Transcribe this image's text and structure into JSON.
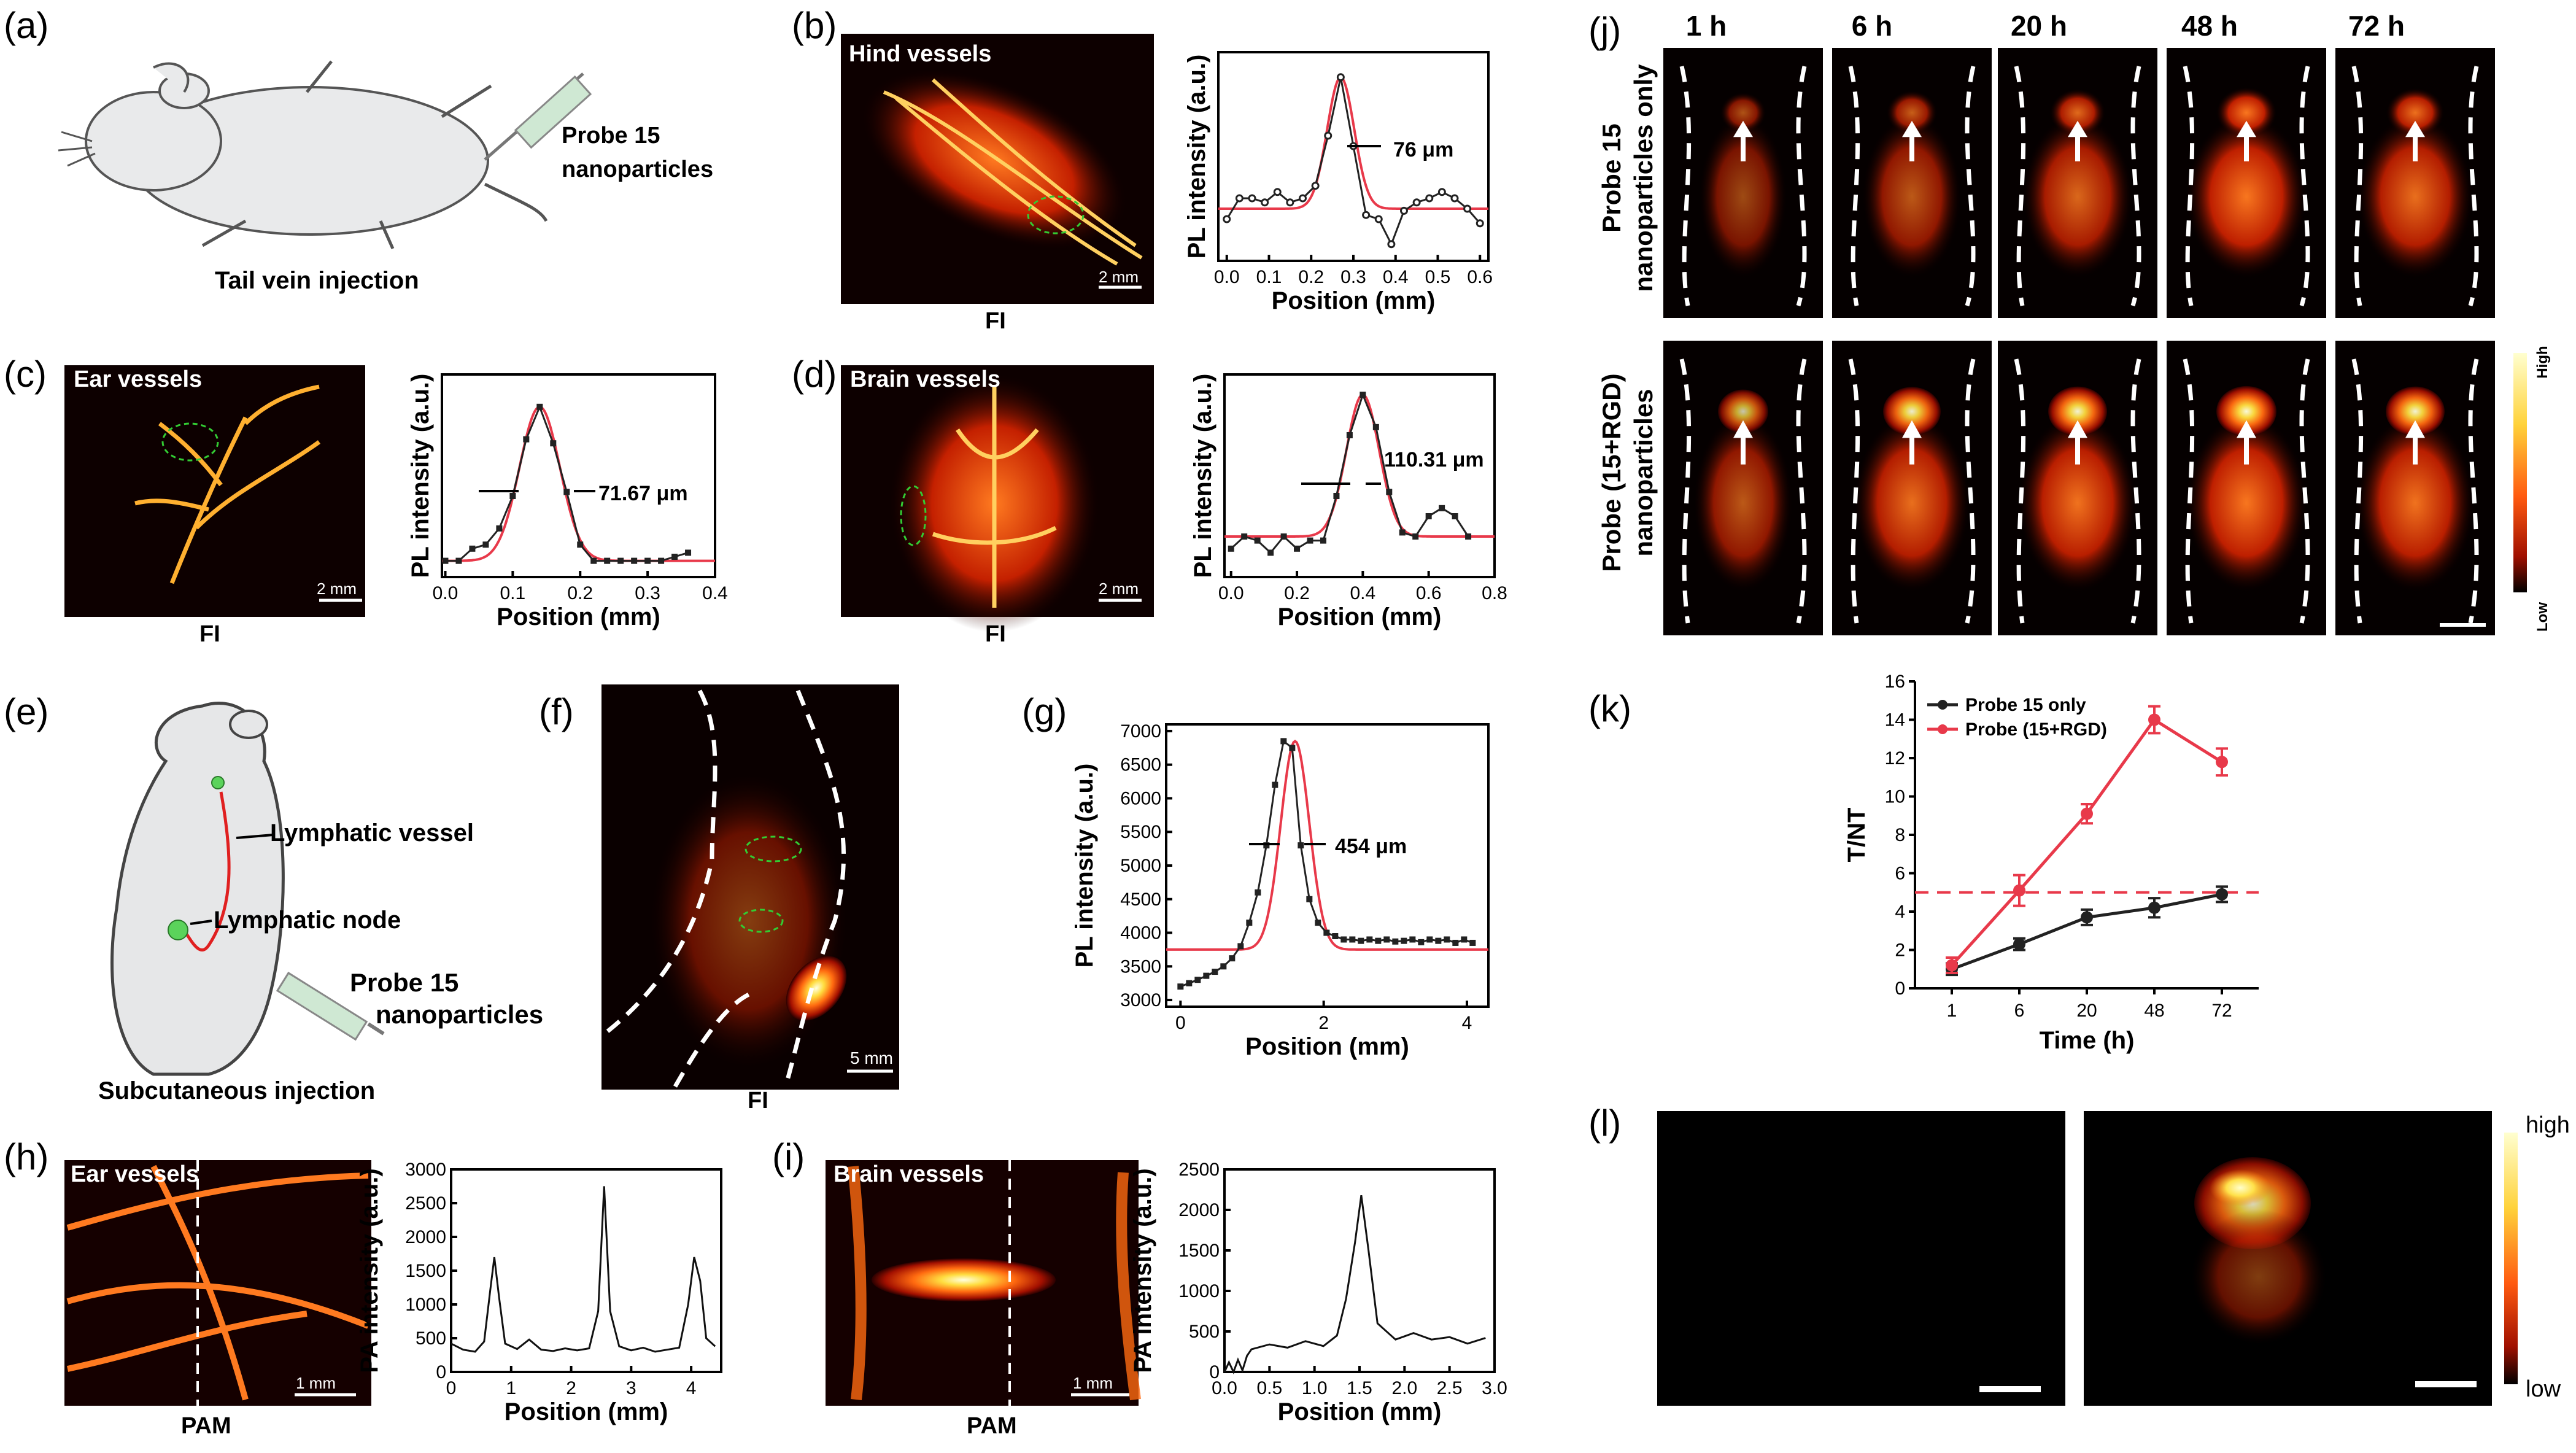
{
  "panels": {
    "a": {
      "label": "(a)",
      "probe_line1": "Probe 15",
      "probe_line2": "nanoparticles",
      "caption": "Tail vein injection"
    },
    "b": {
      "label": "(b)",
      "image_title": "Hind vessels",
      "scale": "2 mm",
      "modality": "FI"
    },
    "c": {
      "label": "(c)",
      "image_title": "Ear vessels",
      "scale": "2 mm",
      "modality": "FI"
    },
    "d": {
      "label": "(d)",
      "image_title": "Brain vessels",
      "scale": "2 mm",
      "modality": "FI"
    },
    "e": {
      "label": "(e)",
      "lymph_vessel": "Lymphatic vessel",
      "lymph_node": "Lymphatic node",
      "probe_line1": "Probe 15",
      "probe_line2": "nanoparticles",
      "caption": "Subcutaneous injection"
    },
    "f": {
      "label": "(f)",
      "scale": "5 mm",
      "modality": "FI"
    },
    "g": {
      "label": "(g)"
    },
    "h": {
      "label": "(h)",
      "image_title": "Ear vessels",
      "scale": "1 mm",
      "modality": "PAM"
    },
    "i": {
      "label": "(i)",
      "image_title": "Brain vessels",
      "scale": "1 mm",
      "modality": "PAM"
    },
    "j": {
      "label": "(j)",
      "times": [
        "1 h",
        "6 h",
        "20 h",
        "48 h",
        "72 h"
      ],
      "row1_line1": "Probe 15",
      "row1_line2": "nanoparticles  only",
      "row2_line1": "Probe (15+RGD)",
      "row2_line2": "nanoparticles",
      "cbar_high": "High",
      "cbar_low": "Low"
    },
    "k": {
      "label": "(k)"
    },
    "l": {
      "label": "(l)",
      "cbar_high": "high",
      "cbar_low": "low"
    }
  },
  "chart_data": [
    {
      "id": "b",
      "type": "line",
      "xlabel": "Position (mm)",
      "ylabel": "PL intensity (a.u.)",
      "annotation": "76 μm",
      "xlim": [
        -0.02,
        0.62
      ],
      "ylim": [
        0,
        1
      ],
      "xticks": [
        "0.0",
        "0.1",
        "0.2",
        "0.3",
        "0.4",
        "0.5",
        "0.6"
      ],
      "xtick_values": [
        0,
        0.1,
        0.2,
        0.3,
        0.4,
        0.5,
        0.6
      ],
      "x": [
        0,
        0.03,
        0.06,
        0.09,
        0.12,
        0.15,
        0.18,
        0.21,
        0.24,
        0.27,
        0.3,
        0.33,
        0.36,
        0.39,
        0.42,
        0.45,
        0.48,
        0.51,
        0.54,
        0.57,
        0.6
      ],
      "y": [
        0.2,
        0.3,
        0.3,
        0.28,
        0.33,
        0.28,
        0.3,
        0.36,
        0.6,
        0.88,
        0.55,
        0.22,
        0.2,
        0.08,
        0.24,
        0.28,
        0.3,
        0.33,
        0.3,
        0.25,
        0.18
      ],
      "fit_center": 0.27,
      "fit_width": 0.032,
      "fit_base": 0.25,
      "fit_peak": 0.88
    },
    {
      "id": "c",
      "type": "line",
      "xlabel": "Position (mm)",
      "ylabel": "PL intensity (a.u.)",
      "annotation": "71.67 μm",
      "xlim": [
        -0.005,
        0.4
      ],
      "ylim": [
        0,
        1
      ],
      "xticks": [
        "0.0",
        "0.1",
        "0.2",
        "0.3",
        "0.4"
      ],
      "xtick_values": [
        0,
        0.1,
        0.2,
        0.3,
        0.4
      ],
      "x": [
        0,
        0.02,
        0.04,
        0.06,
        0.08,
        0.1,
        0.12,
        0.14,
        0.16,
        0.18,
        0.2,
        0.22,
        0.24,
        0.26,
        0.28,
        0.3,
        0.32,
        0.34,
        0.36
      ],
      "y": [
        0.08,
        0.08,
        0.14,
        0.16,
        0.24,
        0.4,
        0.68,
        0.84,
        0.66,
        0.42,
        0.16,
        0.08,
        0.08,
        0.08,
        0.08,
        0.08,
        0.08,
        0.1,
        0.12
      ],
      "fit_center": 0.14,
      "fit_width": 0.03,
      "fit_base": 0.08,
      "fit_peak": 0.84
    },
    {
      "id": "d",
      "type": "line",
      "xlabel": "Position (mm)",
      "ylabel": "PL intensity (a.u.)",
      "annotation": "110.31 μm",
      "xlim": [
        -0.02,
        0.8
      ],
      "ylim": [
        0,
        1
      ],
      "xticks": [
        "0.0",
        "0.2",
        "0.4",
        "0.6",
        "0.8"
      ],
      "xtick_values": [
        0,
        0.2,
        0.4,
        0.6,
        0.8
      ],
      "x": [
        0,
        0.04,
        0.08,
        0.12,
        0.16,
        0.2,
        0.24,
        0.28,
        0.32,
        0.36,
        0.4,
        0.44,
        0.48,
        0.52,
        0.56,
        0.6,
        0.64,
        0.68,
        0.72
      ],
      "y": [
        0.14,
        0.2,
        0.18,
        0.12,
        0.2,
        0.14,
        0.18,
        0.18,
        0.4,
        0.7,
        0.9,
        0.74,
        0.42,
        0.22,
        0.2,
        0.3,
        0.34,
        0.3,
        0.2
      ],
      "fit_center": 0.4,
      "fit_width": 0.05,
      "fit_base": 0.2,
      "fit_peak": 0.9
    },
    {
      "id": "g",
      "type": "line",
      "xlabel": "Position (mm)",
      "ylabel": "PL intensity (a.u.)",
      "annotation": "454 μm",
      "xlim": [
        -0.2,
        4.3
      ],
      "ylim": [
        2900,
        7100
      ],
      "xticks": [
        "0",
        "2",
        "4"
      ],
      "xtick_values": [
        0,
        2,
        4
      ],
      "yticks": [
        "3000",
        "3500",
        "4000",
        "4500",
        "5000",
        "5500",
        "6000",
        "6500",
        "7000"
      ],
      "ytick_values": [
        3000,
        3500,
        4000,
        4500,
        5000,
        5500,
        6000,
        6500,
        7000
      ],
      "x": [
        0,
        0.12,
        0.24,
        0.36,
        0.48,
        0.6,
        0.72,
        0.84,
        0.96,
        1.08,
        1.2,
        1.32,
        1.44,
        1.56,
        1.68,
        1.8,
        1.92,
        2.04,
        2.16,
        2.28,
        2.4,
        2.52,
        2.64,
        2.76,
        2.88,
        3.0,
        3.12,
        3.24,
        3.36,
        3.48,
        3.6,
        3.72,
        3.84,
        3.96,
        4.08
      ],
      "y": [
        3200,
        3250,
        3300,
        3360,
        3420,
        3500,
        3620,
        3800,
        4150,
        4600,
        5300,
        6200,
        6850,
        6750,
        5300,
        4500,
        4150,
        4000,
        3950,
        3900,
        3900,
        3880,
        3900,
        3880,
        3900,
        3870,
        3880,
        3900,
        3860,
        3900,
        3880,
        3900,
        3850,
        3900,
        3850
      ],
      "fit_center": 1.6,
      "fit_width": 0.2,
      "fit_base": 3750,
      "fit_peak": 6850
    },
    {
      "id": "h",
      "type": "line",
      "xlabel": "Position (mm)",
      "ylabel": "PA intensity (a.u.)",
      "xlim": [
        0,
        4.5
      ],
      "ylim": [
        0,
        3000
      ],
      "xticks": [
        "0",
        "1",
        "2",
        "3",
        "4"
      ],
      "xtick_values": [
        0,
        1,
        2,
        3,
        4
      ],
      "yticks": [
        "0",
        "500",
        "1000",
        "1500",
        "2000",
        "2500",
        "3000"
      ],
      "ytick_values": [
        0,
        500,
        1000,
        1500,
        2000,
        2500,
        3000
      ],
      "x": [
        0,
        0.2,
        0.4,
        0.55,
        0.65,
        0.72,
        0.8,
        0.9,
        1.1,
        1.3,
        1.5,
        1.7,
        1.9,
        2.1,
        2.3,
        2.45,
        2.55,
        2.65,
        2.8,
        3.0,
        3.2,
        3.4,
        3.6,
        3.8,
        3.95,
        4.05,
        4.15,
        4.25,
        4.4
      ],
      "y": [
        420,
        330,
        300,
        450,
        1200,
        1700,
        1100,
        420,
        340,
        480,
        330,
        310,
        350,
        320,
        350,
        900,
        2750,
        900,
        380,
        320,
        360,
        300,
        330,
        360,
        1000,
        1700,
        1350,
        500,
        380
      ]
    },
    {
      "id": "i",
      "type": "line",
      "xlabel": "Position (mm)",
      "ylabel": "PA intensity (a.u.)",
      "xlim": [
        0,
        3.0
      ],
      "ylim": [
        0,
        2500
      ],
      "xticks": [
        "0.0",
        "0.5",
        "1.0",
        "1.5",
        "2.0",
        "2.5",
        "3.0"
      ],
      "xtick_values": [
        0,
        0.5,
        1.0,
        1.5,
        2.0,
        2.5,
        3.0
      ],
      "yticks": [
        "0",
        "500",
        "1000",
        "1500",
        "2000",
        "2500"
      ],
      "ytick_values": [
        0,
        500,
        1000,
        1500,
        2000,
        2500
      ],
      "x": [
        0,
        0.05,
        0.1,
        0.15,
        0.2,
        0.25,
        0.3,
        0.5,
        0.7,
        0.9,
        1.1,
        1.25,
        1.35,
        1.45,
        1.52,
        1.6,
        1.7,
        1.9,
        2.1,
        2.3,
        2.5,
        2.7,
        2.9
      ],
      "y": [
        0,
        120,
        0,
        150,
        20,
        200,
        280,
        340,
        300,
        380,
        320,
        450,
        900,
        1600,
        2180,
        1500,
        600,
        400,
        480,
        400,
        430,
        350,
        420
      ]
    },
    {
      "id": "k",
      "type": "line",
      "xlabel": "Time (h)",
      "ylabel": "T/NT",
      "categories": [
        "1",
        "6",
        "20",
        "48",
        "72"
      ],
      "ylim": [
        0,
        16
      ],
      "yticks": [
        "0",
        "2",
        "4",
        "6",
        "8",
        "10",
        "12",
        "14",
        "16"
      ],
      "ytick_values": [
        0,
        2,
        4,
        6,
        8,
        10,
        12,
        14,
        16
      ],
      "threshold": 5,
      "series": [
        {
          "name": "Probe 15 only",
          "color": "#222222",
          "values": [
            1.0,
            2.3,
            3.7,
            4.2,
            4.9
          ],
          "errors": [
            0.3,
            0.3,
            0.4,
            0.5,
            0.4
          ]
        },
        {
          "name": "Probe (15+RGD)",
          "color": "#e8394a",
          "values": [
            1.2,
            5.1,
            9.1,
            14.0,
            11.8
          ],
          "errors": [
            0.4,
            0.8,
            0.5,
            0.7,
            0.7
          ]
        }
      ]
    }
  ]
}
